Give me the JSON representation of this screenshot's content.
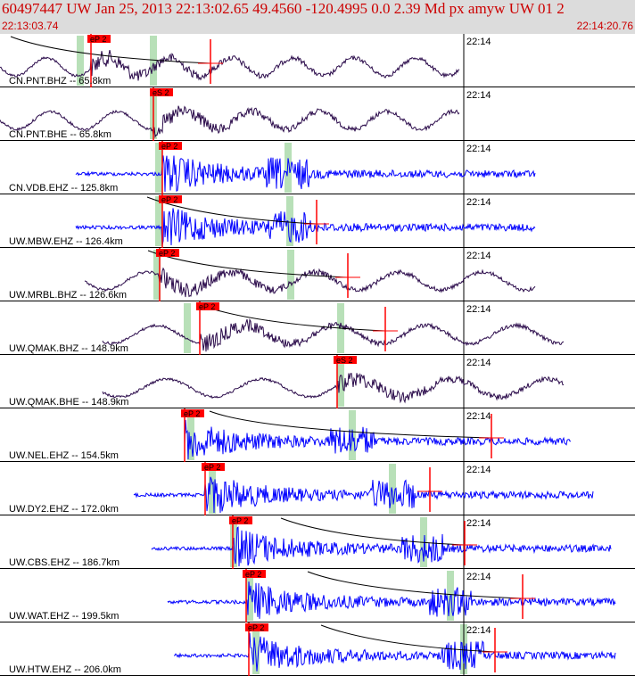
{
  "header": {
    "title": "60497447  UW  Jan 25, 2013 22:13:02.65    49.4560  -120.4995   0.0  2.39  Md  px  amyw  UW  01    2",
    "start_time": "22:13:03.74",
    "end_time": "22:14:20.76"
  },
  "colors": {
    "header_bg": "#dcdcdc",
    "header_text": "#cc0000",
    "trace_broadband": "#2a0a4a",
    "trace_shortperiod": "#0000ff",
    "pick_box": "#ff0000",
    "window_band": "#b8e0b8"
  },
  "minute_label": "22:14",
  "traces": [
    {
      "station": "CN.PNT.BHZ -- 65.8km",
      "pick": "eP 2",
      "kind": "broadband",
      "pick_x": 98,
      "band_x": 90,
      "band2_x": 172,
      "start": 0,
      "end": 515,
      "curve": true,
      "cross": 236
    },
    {
      "station": "CN.PNT.BHE -- 65.8km",
      "pick": "eS 2",
      "kind": "broadband",
      "pick_x": 168,
      "band_x": 172,
      "start": 0,
      "end": 515,
      "curve": false,
      "cross": null
    },
    {
      "station": "CN.VDB.EHZ -- 125.8km",
      "pick": "eP 2",
      "kind": "shortperiod",
      "pick_x": 178,
      "band_x": 178,
      "band2_x": 323,
      "start": 85,
      "end": 600,
      "curve": false,
      "cross": null
    },
    {
      "station": "UW.MBW.EHZ -- 126.4km",
      "pick": "eP 2",
      "kind": "shortperiod",
      "pick_x": 178,
      "band_x": 178,
      "band2_x": 325,
      "start": 85,
      "end": 600,
      "curve": true,
      "cross": 355
    },
    {
      "station": "UW.MRBL.BHZ -- 126.6km",
      "pick": "eP 2",
      "kind": "broadband",
      "pick_x": 175,
      "band_x": 176,
      "band2_x": 326,
      "start": 95,
      "end": 600,
      "curve": true,
      "cross": 390
    },
    {
      "station": "UW.QMAK.BHZ -- 148.9km",
      "pick": "eP 2",
      "kind": "broadband",
      "pick_x": 220,
      "band_x": 210,
      "band2_x": 382,
      "start": 115,
      "end": 632,
      "curve": true,
      "cross": 432
    },
    {
      "station": "UW.QMAK.BHE -- 148.9km",
      "pick": "eS 2",
      "kind": "broadband",
      "pick_x": 374,
      "band_x": 382,
      "start": 115,
      "end": 632,
      "curve": false,
      "cross": null
    },
    {
      "station": "UW.NEL.EHZ -- 154.5km",
      "pick": "eP 2",
      "kind": "shortperiod",
      "pick_x": 203,
      "band_x": 214,
      "band2_x": 395,
      "start": 207,
      "end": 640,
      "curve": true,
      "cross": 551
    },
    {
      "station": "UW.DY2.EHZ -- 172.0km",
      "pick": "eP 2",
      "kind": "shortperiod",
      "pick_x": 226,
      "band_x": 238,
      "band2_x": 440,
      "start": 150,
      "end": 665,
      "curve": false,
      "cross": 482
    },
    {
      "station": "UW.CBS.EHZ -- 186.7km",
      "pick": "eP 2",
      "kind": "shortperiod",
      "pick_x": 257,
      "band_x": 262,
      "band2_x": 475,
      "start": 170,
      "end": 685,
      "curve": true,
      "cross": 521
    },
    {
      "station": "UW.WAT.EHZ -- 199.5km",
      "pick": "eP 2",
      "kind": "shortperiod",
      "pick_x": 272,
      "band_x": 280,
      "band2_x": 505,
      "start": 188,
      "end": 690,
      "curve": true,
      "cross": 586
    },
    {
      "station": "UW.HTW.EHZ -- 206.0km",
      "pick": "eP 2",
      "kind": "shortperiod",
      "pick_x": 275,
      "band_x": 287,
      "band2_x": 520,
      "start": 195,
      "end": 690,
      "curve": true,
      "cross": 555
    }
  ]
}
